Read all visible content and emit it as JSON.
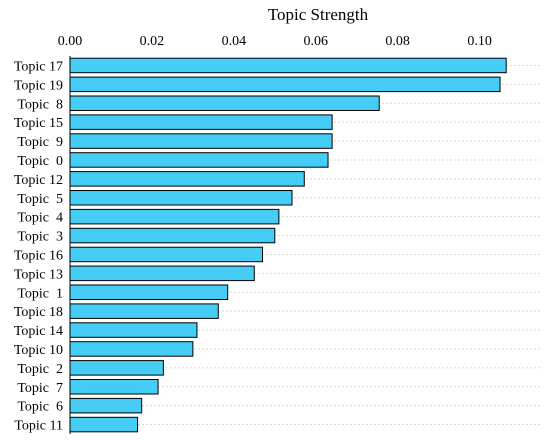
{
  "chart_data": {
    "type": "bar",
    "orientation": "horizontal",
    "title": "Topic Strength",
    "xlabel": "",
    "ylabel": "",
    "xlim": [
      0,
      0.115
    ],
    "xticks": [
      0.0,
      0.02,
      0.04,
      0.06,
      0.08,
      0.1
    ],
    "xtick_labels": [
      "0.00",
      "0.02",
      "0.04",
      "0.06",
      "0.08",
      "0.10"
    ],
    "x_axis_position": "top",
    "grid": "horizontal dotted",
    "bar_color": "#45cdf5",
    "categories": [
      "Topic 17",
      "Topic 19",
      "Topic  8",
      "Topic 15",
      "Topic  9",
      "Topic  0",
      "Topic 12",
      "Topic  5",
      "Topic  4",
      "Topic  3",
      "Topic 16",
      "Topic 13",
      "Topic  1",
      "Topic 18",
      "Topic 14",
      "Topic 10",
      "Topic  2",
      "Topic  7",
      "Topic  6",
      "Topic 11"
    ],
    "values": [
      0.1065,
      0.105,
      0.0755,
      0.064,
      0.064,
      0.063,
      0.0572,
      0.0542,
      0.051,
      0.05,
      0.047,
      0.045,
      0.0385,
      0.0362,
      0.031,
      0.03,
      0.0228,
      0.0215,
      0.0175,
      0.0165
    ]
  }
}
